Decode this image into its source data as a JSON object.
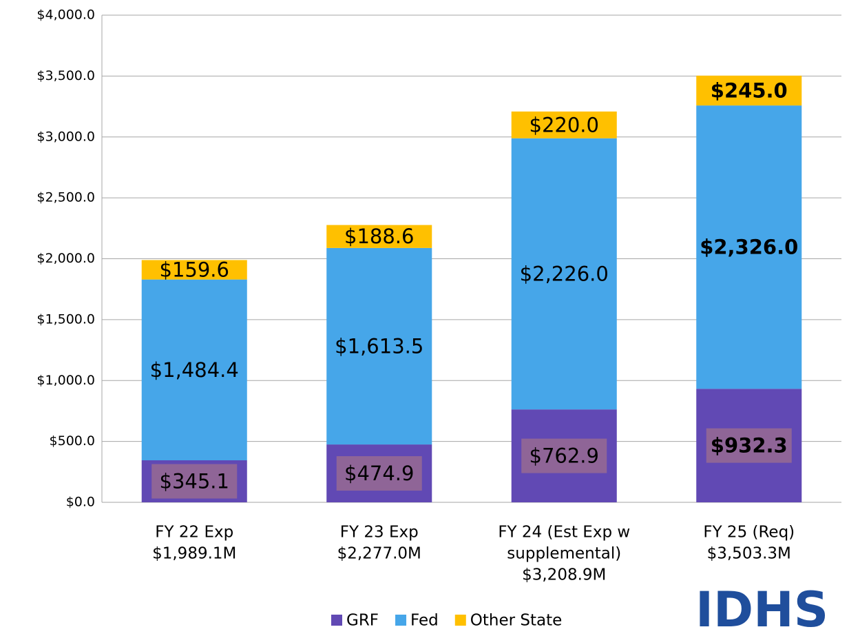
{
  "chart_data": {
    "type": "stacked_bar",
    "categories": [
      [
        "FY 22 Exp",
        "$1,989.1M"
      ],
      [
        "FY 23 Exp",
        "$2,277.0M"
      ],
      [
        "FY 24 (Est Exp w",
        "supplemental)",
        "$3,208.9M"
      ],
      [
        "FY 25 (Req)",
        "$3,503.3M"
      ]
    ],
    "series": [
      {
        "name": "GRF",
        "color": "#6149b4",
        "values": [
          345.1,
          474.9,
          762.9,
          932.3
        ],
        "value_labels": [
          "$345.1",
          "$474.9",
          "$762.9",
          "$932.3"
        ]
      },
      {
        "name": "Fed",
        "color": "#46a6e9",
        "values": [
          1484.4,
          1613.5,
          2226.0,
          2326.0
        ],
        "value_labels": [
          "$1,484.4",
          "$1,613.5",
          "$2,226.0",
          "$2,326.0"
        ]
      },
      {
        "name": "Other State",
        "color": "#ffc000",
        "values": [
          159.6,
          188.6,
          220.0,
          245.0
        ],
        "value_labels": [
          "$159.6",
          "$188.6",
          "$220.0",
          "$245.0"
        ]
      }
    ],
    "ylim": [
      0,
      4000
    ],
    "yticks": [
      {
        "value": 0,
        "label": "$0.0"
      },
      {
        "value": 500,
        "label": "$500.0"
      },
      {
        "value": 1000,
        "label": "$1,000.0"
      },
      {
        "value": 1500,
        "label": "$1,500.0"
      },
      {
        "value": 2000,
        "label": "$2,000.0"
      },
      {
        "value": 2500,
        "label": "$2,500.0"
      },
      {
        "value": 3000,
        "label": "$3,000.0"
      },
      {
        "value": 3500,
        "label": "$3,500.0"
      },
      {
        "value": 4000,
        "label": "$4,000.0"
      }
    ],
    "grid": true,
    "legend": "bottom",
    "logo": "IDHS"
  }
}
